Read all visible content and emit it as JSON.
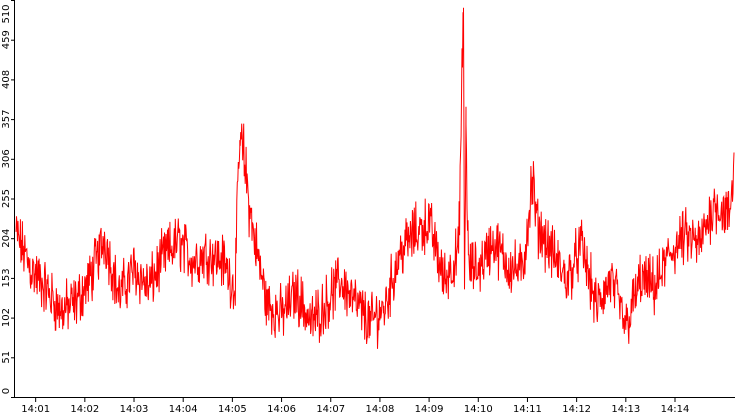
{
  "chart_data": {
    "type": "line",
    "title": "",
    "xlabel": "",
    "ylabel": "",
    "ylim": [
      0,
      510
    ],
    "y_ticks": [
      0,
      51,
      102,
      153,
      204,
      255,
      306,
      357,
      408,
      459,
      510
    ],
    "y_tick_labels": [
      "0",
      "51",
      "102",
      "153",
      "204",
      "255",
      "306",
      "357",
      "408",
      "459",
      "510"
    ],
    "x_tick_labels": [
      "14:01",
      "14:02",
      "14:03",
      "14:04",
      "14:05",
      "14:06",
      "14:07",
      "14:08",
      "14:09",
      "14:10",
      "14:11",
      "14:12",
      "14:13",
      "14:14"
    ],
    "xlim_minutes": [
      0.58,
      15.22
    ],
    "grid": false,
    "legend": "none",
    "series": [
      {
        "color": "#ff0000",
        "x_minutes": [
          0.6,
          0.9,
          1.2,
          1.5,
          1.8,
          2.1,
          2.4,
          2.7,
          3.0,
          3.3,
          3.6,
          3.9,
          4.2,
          4.5,
          4.8,
          5.05,
          5.15,
          5.25,
          5.4,
          5.7,
          6.0,
          6.3,
          6.6,
          6.9,
          7.2,
          7.5,
          7.8,
          8.1,
          8.4,
          8.7,
          9.0,
          9.3,
          9.6,
          9.7,
          9.72,
          9.75,
          9.8,
          10.0,
          10.3,
          10.6,
          10.9,
          11.1,
          11.2,
          11.5,
          11.8,
          12.1,
          12.4,
          12.7,
          13.0,
          13.3,
          13.6,
          13.9,
          14.2,
          14.5,
          14.8,
          15.1,
          15.2
        ],
        "values": [
          210,
          165,
          140,
          110,
          120,
          150,
          205,
          130,
          165,
          140,
          180,
          200,
          175,
          185,
          175,
          140,
          330,
          300,
          220,
          120,
          105,
          135,
          95,
          120,
          150,
          120,
          95,
          115,
          185,
          210,
          225,
          150,
          185,
          500,
          130,
          350,
          165,
          165,
          200,
          170,
          160,
          275,
          220,
          185,
          150,
          195,
          115,
          150,
          90,
          150,
          140,
          185,
          205,
          195,
          250,
          230,
          290
        ]
      }
    ]
  }
}
